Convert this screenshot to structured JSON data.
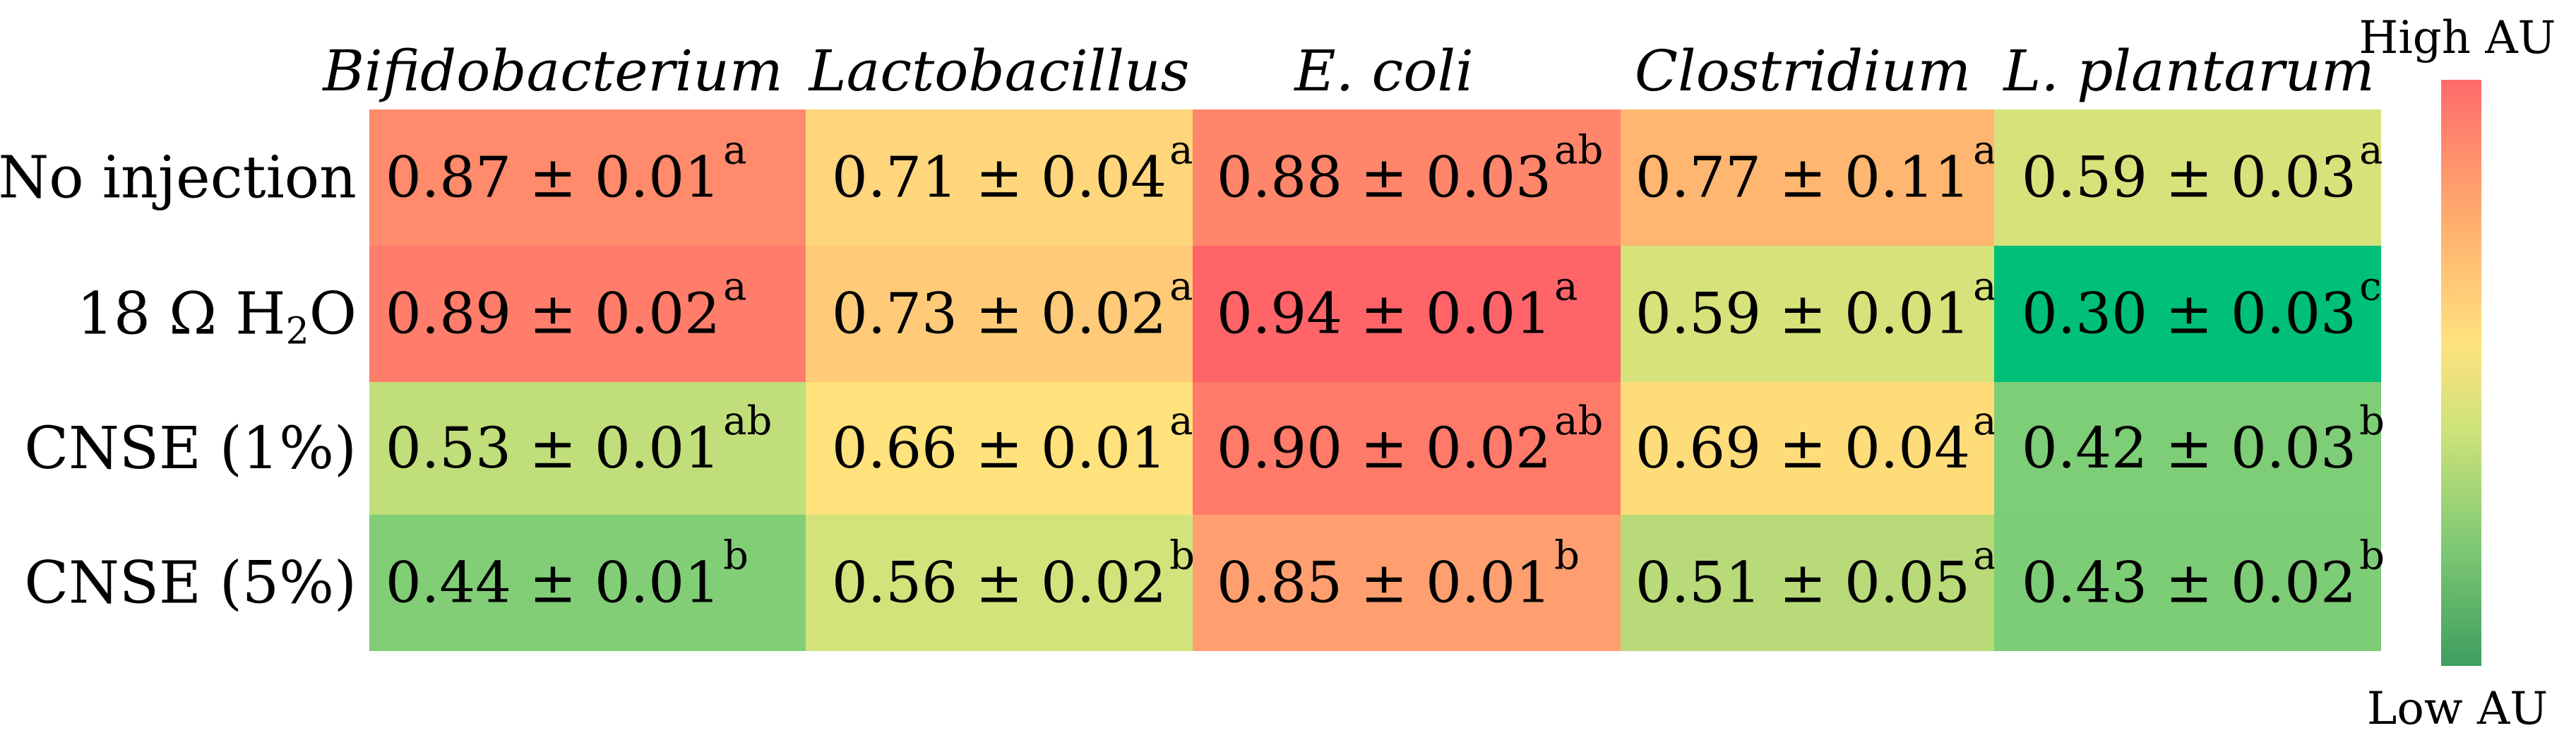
{
  "chart_data": {
    "type": "heatmap",
    "columns": [
      "Bifidobacterium",
      "Lactobacillus",
      "E. coli",
      "Clostridium",
      "L. plantarum"
    ],
    "rows": [
      {
        "label_parts": [
          "No injection"
        ]
      },
      {
        "label_parts": [
          "18 Ω H",
          "2",
          "O"
        ]
      },
      {
        "label_parts": [
          "CNSE (1%)"
        ]
      },
      {
        "label_parts": [
          "CNSE (5%)"
        ]
      }
    ],
    "values": [
      [
        0.87,
        0.71,
        0.88,
        0.77,
        0.59
      ],
      [
        0.89,
        0.73,
        0.94,
        0.59,
        0.3
      ],
      [
        0.53,
        0.66,
        0.9,
        0.69,
        0.42
      ],
      [
        0.44,
        0.56,
        0.85,
        0.51,
        0.43
      ]
    ],
    "cell_text": [
      [
        "0.87 ± 0.01",
        "0.71 ± 0.04",
        "0.88 ± 0.03",
        "0.77 ± 0.11",
        "0.59 ± 0.03"
      ],
      [
        "0.89 ± 0.02",
        "0.73 ± 0.02",
        "0.94 ± 0.01",
        "0.59 ± 0.01",
        "0.30 ± 0.03"
      ],
      [
        "0.53 ± 0.01",
        "0.66 ± 0.01",
        "0.90 ± 0.02",
        "0.69 ± 0.04",
        "0.42 ± 0.03"
      ],
      [
        "0.44 ± 0.01",
        "0.56 ± 0.02",
        "0.85 ± 0.01",
        "0.51 ± 0.05",
        "0.43 ± 0.02"
      ]
    ],
    "superscripts": [
      [
        "a",
        "a",
        "ab",
        "a",
        "a"
      ],
      [
        "a",
        "a",
        "a",
        "a",
        "c"
      ],
      [
        "ab",
        "a",
        "ab",
        "a",
        "b"
      ],
      [
        "b",
        "b",
        "b",
        "a",
        "b"
      ]
    ],
    "color_scale": {
      "high_label": "High AU",
      "low_label": "Low AU",
      "stops": [
        "#3f9e5f",
        "#7dc873",
        "#cde27a",
        "#ffe27e",
        "#ffb06e",
        "#ff6b6b"
      ]
    },
    "cell_colors": [
      [
        "#ff8a6c",
        "#ffd67c",
        "#ff856b",
        "#ffb670",
        "#d8e27b"
      ],
      [
        "#ff7d6a",
        "#ffcb78",
        "#ff6468",
        "#d6e27a",
        "#00bf78"
      ],
      [
        "#c0de7a",
        "#ffe27c",
        "#ff7a69",
        "#ffdc7a",
        "#7ecd77"
      ],
      [
        "#81ce77",
        "#d4e27b",
        "#ff9f6f",
        "#b9da79",
        "#7dcc76"
      ]
    ]
  }
}
